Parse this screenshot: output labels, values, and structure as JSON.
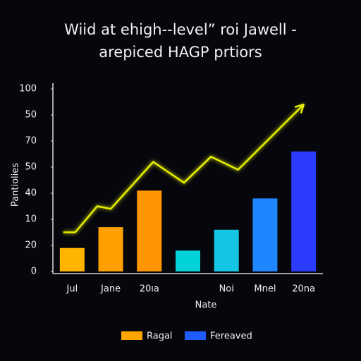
{
  "chart_data": {
    "type": "bar",
    "title": "Wiid at ehigh--level” roi Jawell -",
    "subtitle": "arepiced HAGP prtiors",
    "x_label": "Nate",
    "y_label": "Pantiolies",
    "categories": [
      "Jul",
      "Jane",
      "20ıa",
      null,
      "Noi",
      "Mnel",
      "20na"
    ],
    "values": [
      0.9,
      1.7,
      3.1,
      0.8,
      1.6,
      2.8,
      4.6
    ],
    "colors": [
      "#ffb400",
      "#ffa000",
      "#ff9500",
      "#00d2da",
      "#14c6e4",
      "#1f86ff",
      "#2b3cff"
    ],
    "line": {
      "color": "#e6f000",
      "x": [
        -0.23,
        0.08,
        0.65,
        1.0,
        2.1,
        2.9,
        3.6,
        4.3,
        6.0
      ],
      "values": [
        1.5,
        1.5,
        2.5,
        2.4,
        4.2,
        3.4,
        4.4,
        3.9,
        6.4
      ]
    },
    "ylim": [
      0,
      7
    ],
    "yticks": [
      {
        "value": 0,
        "label": "0"
      },
      {
        "value": 1,
        "label": "20"
      },
      {
        "value": 2,
        "label": "10"
      },
      {
        "value": 3,
        "label": "40"
      },
      {
        "value": 4,
        "label": "50"
      },
      {
        "value": 5,
        "label": "70"
      },
      {
        "value": 6,
        "label": "50"
      },
      {
        "value": 7,
        "label": "100"
      }
    ],
    "legend": [
      {
        "name": "Ragal",
        "color": "#ffa500"
      },
      {
        "name": "Fereaved",
        "color": "#1f5cff"
      }
    ]
  }
}
